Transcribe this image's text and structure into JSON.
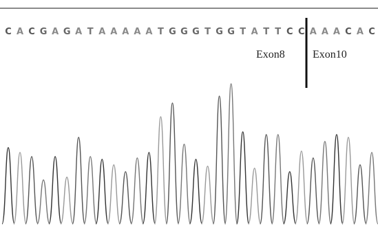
{
  "sequence": [
    "C",
    "A",
    "C",
    "G",
    "A",
    "G",
    "A",
    "T",
    "A",
    "A",
    "A",
    "A",
    "A",
    "T",
    "G",
    "G",
    "G",
    "T",
    "G",
    "G",
    "T",
    "A",
    "T",
    "T",
    "C",
    "C",
    "A",
    "A",
    "A",
    "C",
    "A",
    "C"
  ],
  "labels": {
    "left": "Exon8",
    "right": "Exon10"
  }
}
